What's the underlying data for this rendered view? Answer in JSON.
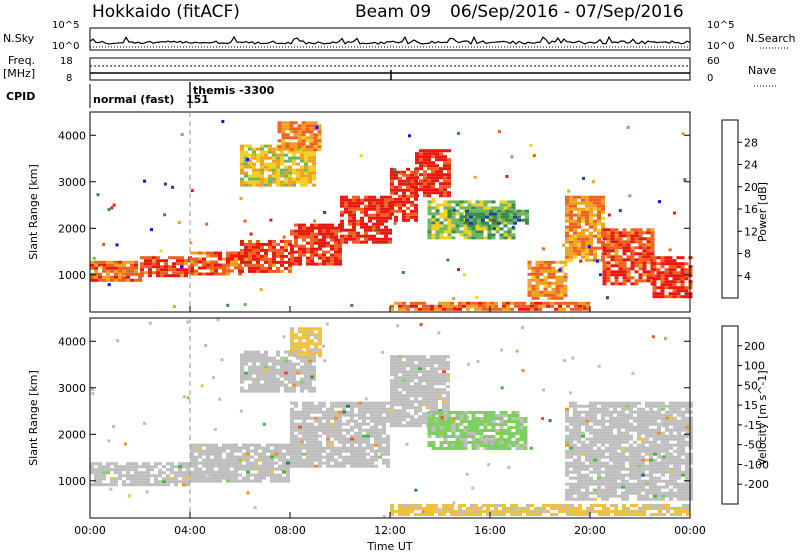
{
  "header": {
    "station": "Hokkaido (fitACF)",
    "beam": "Beam 09",
    "date_range": "06/Sep/2016 - 07/Sep/2016"
  },
  "side_labels": {
    "nsky": "N.Sky",
    "freq": "Freq.",
    "freq_unit": "[MHz]",
    "cpid": "CPID",
    "nsearch": "N.Search",
    "nave": "Nave"
  },
  "small_axes": {
    "noise_ticks": [
      "10^5",
      "10^0"
    ],
    "noise_ticks_right": [
      "10^5",
      "10^0"
    ],
    "freq_ticks": [
      "18",
      "8"
    ],
    "nave_ticks": [
      "60",
      "0"
    ]
  },
  "cpid_segments": [
    {
      "label": "normal (fast)",
      "start_hour": 0.0
    },
    {
      "label": "151",
      "start_hour": 4.0
    },
    {
      "label": "themis -3300",
      "start_hour": 4.0
    }
  ],
  "colors": {
    "power_scale": [
      "#0018f0",
      "#20409a",
      "#3a8a4a",
      "#6cb860",
      "#f0d020",
      "#f0a020",
      "#f06020",
      "#e81810"
    ],
    "velocity_scale": [
      "#1030c0",
      "#208070",
      "#40b840",
      "#80d060",
      "#bebebe",
      "#f0c040",
      "#f09020",
      "#f05020",
      "#e01010"
    ],
    "ground_scatter": "#bebebe"
  },
  "chart_data": [
    {
      "type": "heatmap",
      "title": "",
      "xlabel": "",
      "ylabel": "Slant Range [km]",
      "x_unit": "hour UT",
      "xlim": [
        0,
        24
      ],
      "ylim": [
        200,
        4500
      ],
      "x_ticks": [
        "00:00",
        "04:00",
        "08:00",
        "12:00",
        "16:00",
        "20:00",
        "00:00"
      ],
      "y_ticks": [
        1000,
        2000,
        3000,
        4000
      ],
      "colorbar": {
        "label": "Power [dB]",
        "ticks": [
          "4",
          "8",
          "12",
          "16",
          "20",
          "24",
          "28"
        ],
        "range": [
          0,
          30
        ]
      },
      "bands": [
        {
          "t0": 0,
          "t1": 2,
          "r0": 900,
          "r1": 1300,
          "value": 24
        },
        {
          "t0": 2,
          "t1": 4,
          "r0": 950,
          "r1": 1400,
          "value": 26
        },
        {
          "t0": 4,
          "t1": 6,
          "r0": 1000,
          "r1": 1500,
          "value": 25
        },
        {
          "t0": 6,
          "t1": 8,
          "r0": 1100,
          "r1": 1750,
          "value": 26
        },
        {
          "t0": 8,
          "t1": 10,
          "r0": 1250,
          "r1": 2100,
          "value": 27
        },
        {
          "t0": 10,
          "t1": 12,
          "r0": 1700,
          "r1": 2700,
          "value": 28
        },
        {
          "t0": 12,
          "t1": 13,
          "r0": 2200,
          "r1": 3300,
          "value": 28
        },
        {
          "t0": 13,
          "t1": 14.3,
          "r0": 2700,
          "r1": 3700,
          "value": 28
        },
        {
          "t0": 6,
          "t1": 9,
          "r0": 2900,
          "r1": 3800,
          "value": 18
        },
        {
          "t0": 7.5,
          "t1": 9.2,
          "r0": 3700,
          "r1": 4300,
          "value": 22
        },
        {
          "t0": 13.5,
          "t1": 17,
          "r0": 1800,
          "r1": 2600,
          "value": 14
        },
        {
          "t0": 15,
          "t1": 17.5,
          "r0": 2100,
          "r1": 2400,
          "value": 10
        },
        {
          "t0": 17.5,
          "t1": 19,
          "r0": 500,
          "r1": 1300,
          "value": 22
        },
        {
          "t0": 19,
          "t1": 20.5,
          "r0": 1300,
          "r1": 2700,
          "value": 22
        },
        {
          "t0": 20.5,
          "t1": 22.5,
          "r0": 800,
          "r1": 2000,
          "value": 26
        },
        {
          "t0": 22.5,
          "t1": 24,
          "r0": 500,
          "r1": 1400,
          "value": 27
        },
        {
          "t0": 12,
          "t1": 20,
          "r0": 250,
          "r1": 420,
          "value": 24
        }
      ]
    },
    {
      "type": "heatmap",
      "title": "",
      "xlabel": "Time UT",
      "ylabel": "Slant Range [km]",
      "x_unit": "hour UT",
      "xlim": [
        0,
        24
      ],
      "ylim": [
        200,
        4500
      ],
      "x_ticks": [
        "00:00",
        "04:00",
        "08:00",
        "12:00",
        "16:00",
        "20:00",
        "00:00"
      ],
      "y_ticks": [
        1000,
        2000,
        3000,
        4000
      ],
      "colorbar": {
        "label": "Velocity [m s^-1]",
        "ticks": [
          "200",
          "100",
          "50",
          "15",
          "-15",
          "-50",
          "-100",
          "-200"
        ],
        "range": [
          -250,
          250
        ]
      },
      "bands": [
        {
          "t0": 0,
          "t1": 4,
          "r0": 900,
          "r1": 1400,
          "value": 0
        },
        {
          "t0": 4,
          "t1": 8,
          "r0": 1000,
          "r1": 1800,
          "value": 0
        },
        {
          "t0": 8,
          "t1": 12,
          "r0": 1300,
          "r1": 2700,
          "value": 0
        },
        {
          "t0": 12,
          "t1": 14.3,
          "r0": 2200,
          "r1": 3700,
          "value": 0
        },
        {
          "t0": 6,
          "t1": 9,
          "r0": 2900,
          "r1": 3800,
          "value": 0
        },
        {
          "t0": 8,
          "t1": 9.2,
          "r0": 3700,
          "r1": 4300,
          "value": -40
        },
        {
          "t0": 13.5,
          "t1": 17.5,
          "r0": 1700,
          "r1": 2500,
          "value": 40
        },
        {
          "t0": 19,
          "t1": 24,
          "r0": 600,
          "r1": 2700,
          "value": 0
        },
        {
          "t0": 12,
          "t1": 24,
          "r0": 250,
          "r1": 500,
          "value": -40
        }
      ]
    }
  ]
}
